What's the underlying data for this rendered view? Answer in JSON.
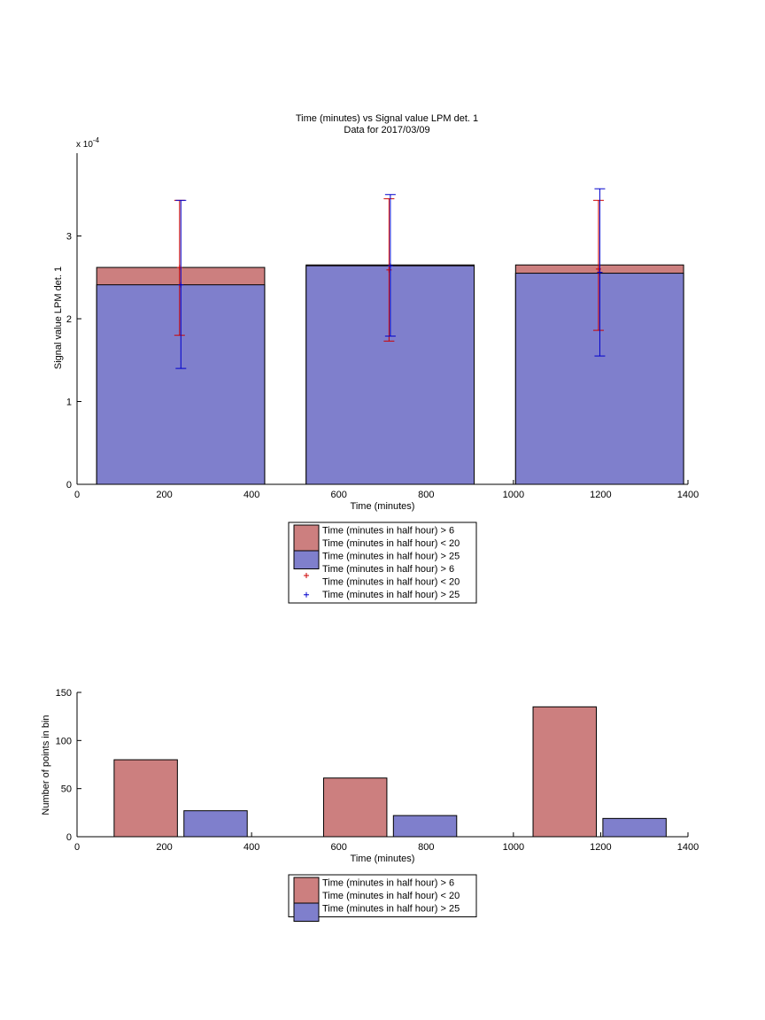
{
  "chart_data": [
    {
      "type": "bar",
      "title": "Time (minutes) vs Signal value LPM det. 1",
      "subtitle": "Data for 2017/03/09",
      "xlabel": "Time (minutes)",
      "ylabel": "Signal value LPM det. 1",
      "y_multiplier_label": "x 10",
      "y_multiplier_exponent": "-4",
      "xlim": [
        0,
        1400
      ],
      "ylim": [
        0,
        4
      ],
      "xticks": [
        0,
        200,
        400,
        600,
        800,
        1000,
        1200,
        1400
      ],
      "yticks": [
        0,
        1,
        2,
        3
      ],
      "bars": [
        {
          "x_start": 45,
          "x_end": 430,
          "values": [
            2.62,
            2.41
          ]
        },
        {
          "x_start": 525,
          "x_end": 910,
          "values": [
            2.65,
            2.64
          ]
        },
        {
          "x_start": 1005,
          "x_end": 1390,
          "values": [
            2.65,
            2.55
          ]
        }
      ],
      "series": [
        {
          "name": "Time (minutes in half hour) > 6\nTime (minutes in half hour) < 20",
          "color": "#cc7f7f",
          "kind": "bar"
        },
        {
          "name": "Time (minutes in half hour) > 25",
          "color": "#7f7fcc",
          "kind": "bar"
        },
        {
          "name": "Time (minutes in half hour) > 6\nTime (minutes in half hour) < 20",
          "color": "#cc0000",
          "kind": "errorbar",
          "points": [
            {
              "x": 235,
              "y": 2.62,
              "low": 1.8,
              "high": 3.43
            },
            {
              "x": 715,
              "y": 2.59,
              "low": 1.73,
              "high": 3.45
            },
            {
              "x": 1195,
              "y": 2.6,
              "low": 1.86,
              "high": 3.43
            }
          ]
        },
        {
          "name": "Time (minutes in half hour) > 25",
          "color": "#0000cc",
          "kind": "errorbar",
          "points": [
            {
              "x": 238,
              "y": 2.41,
              "low": 1.4,
              "high": 3.43
            },
            {
              "x": 718,
              "y": 2.64,
              "low": 1.79,
              "high": 3.5
            },
            {
              "x": 1198,
              "y": 2.56,
              "low": 1.55,
              "high": 3.57
            }
          ]
        }
      ],
      "legend": {
        "placement": "below",
        "entries": [
          {
            "lines": [
              "Time (minutes in half hour) > 6",
              "Time (minutes in half hour) < 20"
            ],
            "kind": "patch",
            "color": "#cc7f7f"
          },
          {
            "lines": [
              "Time (minutes in half hour) > 25"
            ],
            "kind": "patch",
            "color": "#7f7fcc"
          },
          {
            "lines": [
              "Time (minutes in half hour) > 6",
              "Time (minutes in half hour) < 20"
            ],
            "kind": "marker",
            "color": "#cc0000"
          },
          {
            "lines": [
              "Time (minutes in half hour) > 25"
            ],
            "kind": "marker",
            "color": "#0000cc"
          }
        ]
      }
    },
    {
      "type": "bar",
      "xlabel": "Time (minutes)",
      "ylabel": "Number of points in bin",
      "xlim": [
        0,
        1400
      ],
      "ylim": [
        0,
        150
      ],
      "xticks": [
        0,
        200,
        400,
        600,
        800,
        1000,
        1200,
        1400
      ],
      "yticks": [
        0,
        50,
        100,
        150
      ],
      "series": [
        {
          "name": "Time (minutes in half hour) > 6\nTime (minutes in half hour) < 20",
          "color": "#cc7f7f",
          "bars": [
            {
              "x_start": 85,
              "x_end": 230,
              "value": 80
            },
            {
              "x_start": 565,
              "x_end": 710,
              "value": 61
            },
            {
              "x_start": 1045,
              "x_end": 1190,
              "value": 135
            }
          ]
        },
        {
          "name": "Time (minutes in half hour) > 25",
          "color": "#7f7fcc",
          "bars": [
            {
              "x_start": 245,
              "x_end": 390,
              "value": 27
            },
            {
              "x_start": 725,
              "x_end": 870,
              "value": 22
            },
            {
              "x_start": 1205,
              "x_end": 1350,
              "value": 19
            }
          ]
        }
      ],
      "legend": {
        "placement": "below",
        "entries": [
          {
            "lines": [
              "Time (minutes in half hour) > 6",
              "Time (minutes in half hour) < 20"
            ],
            "kind": "patch",
            "color": "#cc7f7f"
          },
          {
            "lines": [
              "Time (minutes in half hour) > 25"
            ],
            "kind": "patch",
            "color": "#7f7fcc"
          }
        ]
      }
    }
  ]
}
